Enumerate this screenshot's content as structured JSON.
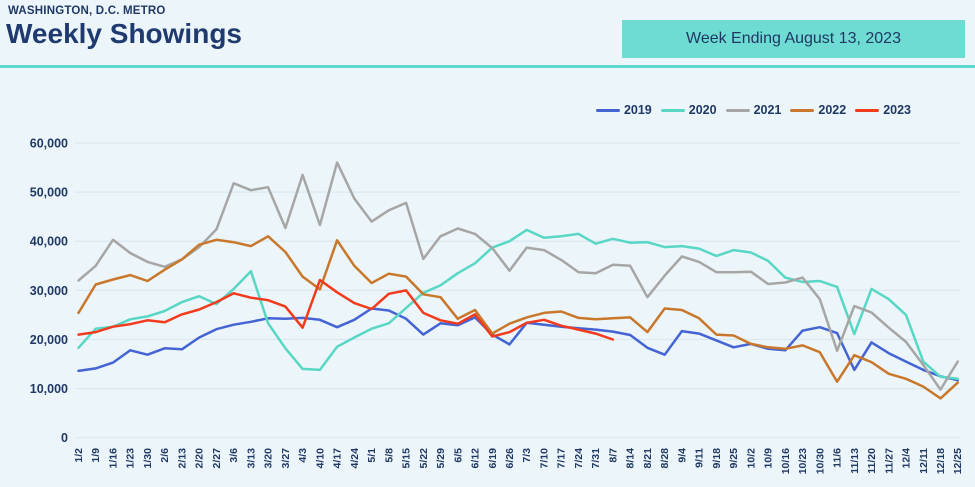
{
  "header": {
    "kicker": "WASHINGTON, D.C. METRO",
    "title": "Weekly Showings",
    "badge": "Week Ending August 13, 2023"
  },
  "colors": {
    "background": "#ECF5F9",
    "title_text": "#1F3864",
    "accent_rule": "#5FD8CC",
    "badge_bg": "#6EDCD2",
    "grid_line": "#D9E9F2",
    "axis_text": "#1F3864"
  },
  "chart_data": {
    "type": "line",
    "title": "Weekly Showings",
    "xlabel": "",
    "ylabel": "",
    "ylim": [
      0,
      60000
    ],
    "y_ticks": [
      0,
      10000,
      20000,
      30000,
      40000,
      50000,
      60000
    ],
    "grid": "horizontal",
    "legend_position": "top-right",
    "x_labels": [
      "1/2",
      "1/9",
      "1/16",
      "1/23",
      "1/30",
      "2/6",
      "2/13",
      "2/20",
      "2/27",
      "3/6",
      "3/13",
      "3/20",
      "3/27",
      "4/3",
      "4/10",
      "4/17",
      "4/24",
      "5/1",
      "5/8",
      "5/15",
      "5/22",
      "5/29",
      "6/5",
      "6/12",
      "6/19",
      "6/26",
      "7/3",
      "7/10",
      "7/17",
      "7/24",
      "7/31",
      "8/7",
      "8/14",
      "8/21",
      "8/28",
      "9/4",
      "9/11",
      "9/18",
      "9/25",
      "10/2",
      "10/9",
      "10/16",
      "10/23",
      "10/30",
      "11/6",
      "11/13",
      "11/20",
      "11/27",
      "12/4",
      "12/11",
      "12/18",
      "12/25"
    ],
    "series": [
      {
        "name": "2019",
        "color": "#4464D4",
        "values": [
          13600,
          14100,
          15300,
          17800,
          16900,
          18200,
          18000,
          20400,
          22100,
          23000,
          23600,
          24300,
          24200,
          24400,
          24000,
          22500,
          24000,
          26300,
          25900,
          24200,
          21000,
          23300,
          22900,
          24500,
          21000,
          19000,
          23400,
          23000,
          22600,
          22300,
          22000,
          21600,
          20900,
          18300,
          16900,
          21700,
          21200,
          19800,
          18400,
          19100,
          18100,
          17800,
          21800,
          22500,
          21300,
          13800,
          19400,
          17200,
          15500,
          13800,
          12500,
          11700
        ]
      },
      {
        "name": "2020",
        "color": "#57D7C4",
        "values": [
          18300,
          22200,
          22600,
          24100,
          24700,
          25800,
          27600,
          28800,
          27200,
          30300,
          33900,
          23300,
          18200,
          14000,
          13800,
          18500,
          20400,
          22200,
          23300,
          26400,
          29500,
          31000,
          33500,
          35500,
          38700,
          40000,
          42300,
          40700,
          41000,
          41500,
          39500,
          40500,
          39700,
          39800,
          38800,
          39000,
          38500,
          37000,
          38200,
          37700,
          36000,
          32600,
          31700,
          31900,
          30700,
          21100,
          30300,
          28200,
          25000,
          15500,
          12400,
          12000
        ]
      },
      {
        "name": "2021",
        "color": "#A6A6A6",
        "values": [
          32000,
          35000,
          40300,
          37600,
          35800,
          34800,
          36300,
          38800,
          42400,
          51800,
          50400,
          51000,
          42700,
          53500,
          43300,
          56000,
          48700,
          44000,
          46300,
          47800,
          36400,
          41000,
          42600,
          41500,
          38600,
          34000,
          38700,
          38200,
          36200,
          33700,
          33500,
          35200,
          35000,
          28600,
          33000,
          36900,
          35800,
          33700,
          33700,
          33800,
          31300,
          31600,
          32600,
          28200,
          17700,
          26800,
          25500,
          22400,
          19500,
          14800,
          9800,
          15500
        ]
      },
      {
        "name": "2022",
        "color": "#C8772B",
        "values": [
          25400,
          31200,
          32200,
          33100,
          31900,
          34200,
          36300,
          39300,
          40300,
          39800,
          39000,
          41000,
          37800,
          32800,
          30200,
          40200,
          35000,
          31500,
          33400,
          32800,
          29200,
          28600,
          24200,
          26000,
          21200,
          23200,
          24500,
          25400,
          25700,
          24400,
          24100,
          24300,
          24500,
          21500,
          26300,
          26000,
          24300,
          21000,
          20800,
          19100,
          18400,
          18100,
          18800,
          17400,
          11400,
          16800,
          15400,
          13000,
          12000,
          10400,
          8000,
          11200
        ]
      },
      {
        "name": "2023",
        "color": "#F23A1C",
        "values": [
          21000,
          21500,
          22600,
          23100,
          23900,
          23500,
          25100,
          26100,
          27600,
          29400,
          28500,
          28000,
          26700,
          22400,
          32100,
          29600,
          27400,
          26200,
          29300,
          30000,
          25400,
          23900,
          23200,
          25100,
          20600,
          21500,
          23400,
          24000,
          22800,
          22000,
          21200,
          20000,
          null,
          null,
          null,
          null,
          null,
          null,
          null,
          null,
          null,
          null,
          null,
          null,
          null,
          null,
          null,
          null,
          null,
          null,
          null,
          null
        ]
      }
    ]
  }
}
